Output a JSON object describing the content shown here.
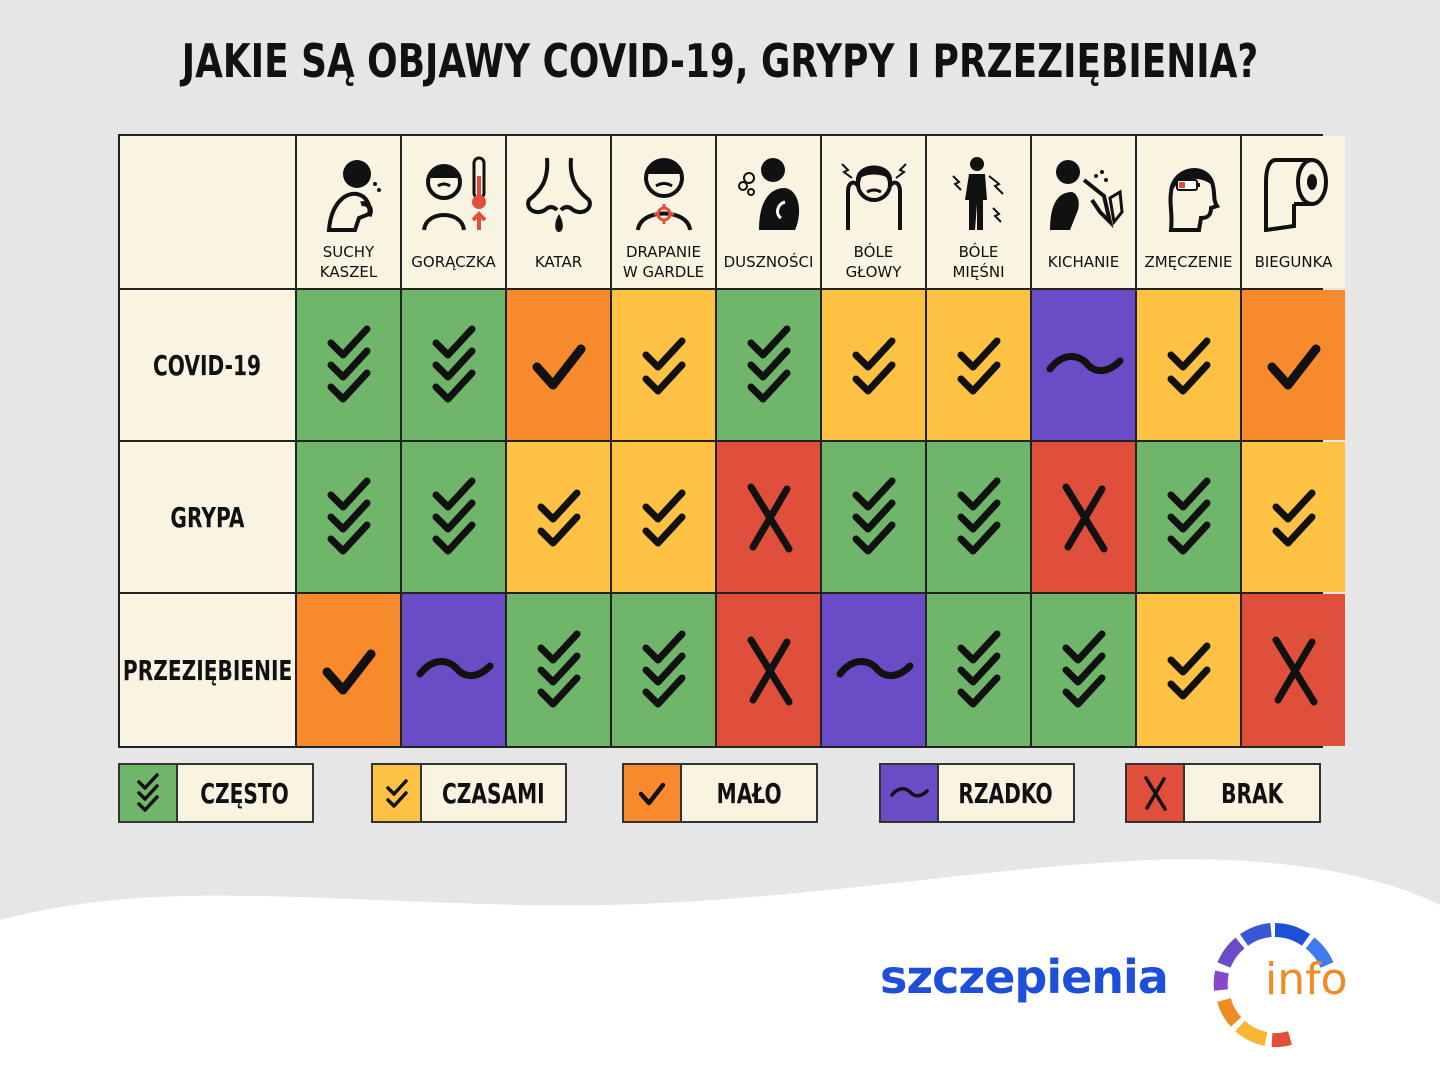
{
  "title": "JAKIE SĄ OBJAWY COVID-19, GRYPY I PRZEZIĘBIENIA?",
  "colors": {
    "czesto": "#6fb56a",
    "czasami": "#fdc244",
    "malo": "#f68a2c",
    "rzadko": "#6a4cc6",
    "brak": "#e04e3c",
    "cream": "#f9f3e1"
  },
  "symptoms": [
    {
      "label": "SUCHY\nKASZEL",
      "icon": "coughing-person-icon"
    },
    {
      "label": "GORĄCZKA",
      "icon": "fever-thermometer-icon"
    },
    {
      "label": "KATAR",
      "icon": "runny-nose-icon"
    },
    {
      "label": "DRAPANIE\nW GARDLE",
      "icon": "sore-throat-icon"
    },
    {
      "label": "DUSZNOŚCI",
      "icon": "shortness-of-breath-icon"
    },
    {
      "label": "BÓLE\nGŁOWY",
      "icon": "headache-icon"
    },
    {
      "label": "BÓLE\nMIĘŚNI",
      "icon": "muscle-pain-icon"
    },
    {
      "label": "KICHANIE",
      "icon": "sneezing-icon"
    },
    {
      "label": "ZMĘCZENIE",
      "icon": "low-battery-head-icon"
    },
    {
      "label": "BIEGUNKA",
      "icon": "toilet-paper-icon"
    }
  ],
  "rows": [
    {
      "label": "COVID-19",
      "values": [
        "czesto",
        "czesto",
        "malo",
        "czasami",
        "czesto",
        "czasami",
        "czasami",
        "rzadko",
        "czasami",
        "malo"
      ]
    },
    {
      "label": "GRYPA",
      "values": [
        "czesto",
        "czesto",
        "czasami",
        "czasami",
        "brak",
        "czesto",
        "czesto",
        "brak",
        "czesto",
        "czasami"
      ]
    },
    {
      "label": "PRZEZIĘBIENIE",
      "values": [
        "malo",
        "rzadko",
        "czesto",
        "czesto",
        "brak",
        "rzadko",
        "czesto",
        "czesto",
        "czasami",
        "brak"
      ]
    }
  ],
  "legend": [
    {
      "key": "czesto",
      "label": "CZĘSTO"
    },
    {
      "key": "czasami",
      "label": "CZASAMI"
    },
    {
      "key": "malo",
      "label": "MAŁO"
    },
    {
      "key": "rzadko",
      "label": "RZADKO"
    },
    {
      "key": "brak",
      "label": "BRAK"
    }
  ],
  "logo": {
    "main": "szczepienia",
    "suffix": "info"
  }
}
